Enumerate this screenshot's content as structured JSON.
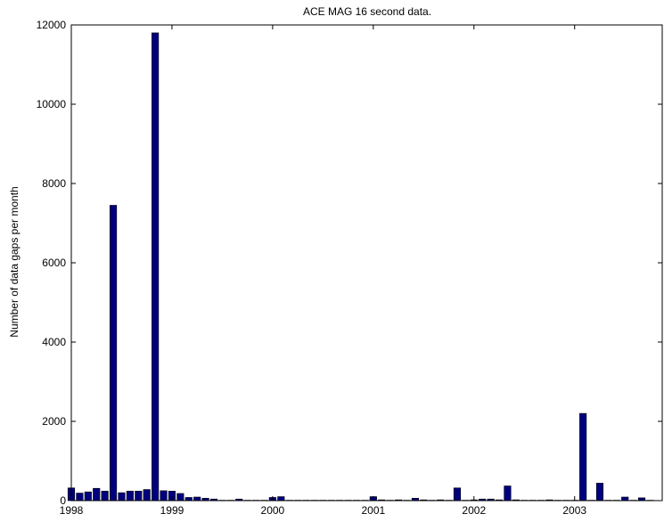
{
  "chart_data": {
    "type": "bar",
    "title": "ACE MAG 16 second data.",
    "xlabel": "",
    "ylabel": "Number of data gaps per month",
    "xlim": [
      1998.0,
      2003.87
    ],
    "ylim": [
      0,
      12000
    ],
    "xticks": [
      1998,
      1999,
      2000,
      2001,
      2002,
      2003
    ],
    "xtick_labels": [
      "1998",
      "1999",
      "2000",
      "2001",
      "2002",
      "2003"
    ],
    "yticks": [
      0,
      2000,
      4000,
      6000,
      8000,
      10000,
      12000
    ],
    "ytick_labels": [
      "0",
      "2000",
      "4000",
      "6000",
      "8000",
      "10000",
      "12000"
    ],
    "bar_color": "#00007f",
    "bar_width_months": 0.8,
    "x": [
      "1998-01",
      "1998-02",
      "1998-03",
      "1998-04",
      "1998-05",
      "1998-06",
      "1998-07",
      "1998-08",
      "1998-09",
      "1998-10",
      "1998-11",
      "1998-12",
      "1999-01",
      "1999-02",
      "1999-03",
      "1999-04",
      "1999-05",
      "1999-06",
      "1999-07",
      "1999-08",
      "1999-09",
      "1999-10",
      "1999-11",
      "1999-12",
      "2000-01",
      "2000-02",
      "2000-03",
      "2000-04",
      "2000-05",
      "2000-06",
      "2000-07",
      "2000-08",
      "2000-09",
      "2000-10",
      "2000-11",
      "2000-12",
      "2001-01",
      "2001-02",
      "2001-03",
      "2001-04",
      "2001-05",
      "2001-06",
      "2001-07",
      "2001-08",
      "2001-09",
      "2001-10",
      "2001-11",
      "2001-12",
      "2002-01",
      "2002-02",
      "2002-03",
      "2002-04",
      "2002-05",
      "2002-06",
      "2002-07",
      "2002-08",
      "2002-09",
      "2002-10",
      "2002-11",
      "2002-12",
      "2003-01",
      "2003-02",
      "2003-03",
      "2003-04",
      "2003-05",
      "2003-06",
      "2003-07",
      "2003-08",
      "2003-09",
      "2003-10"
    ],
    "values": [
      320,
      190,
      220,
      310,
      240,
      7450,
      200,
      240,
      240,
      280,
      11800,
      250,
      240,
      180,
      80,
      90,
      60,
      40,
      10,
      10,
      40,
      10,
      10,
      10,
      80,
      100,
      10,
      10,
      10,
      10,
      10,
      10,
      10,
      10,
      10,
      10,
      100,
      20,
      10,
      20,
      10,
      60,
      20,
      10,
      20,
      10,
      320,
      10,
      20,
      40,
      40,
      20,
      370,
      20,
      10,
      10,
      10,
      20,
      10,
      10,
      10,
      2200,
      10,
      440,
      10,
      10,
      90,
      10,
      70,
      10
    ]
  }
}
